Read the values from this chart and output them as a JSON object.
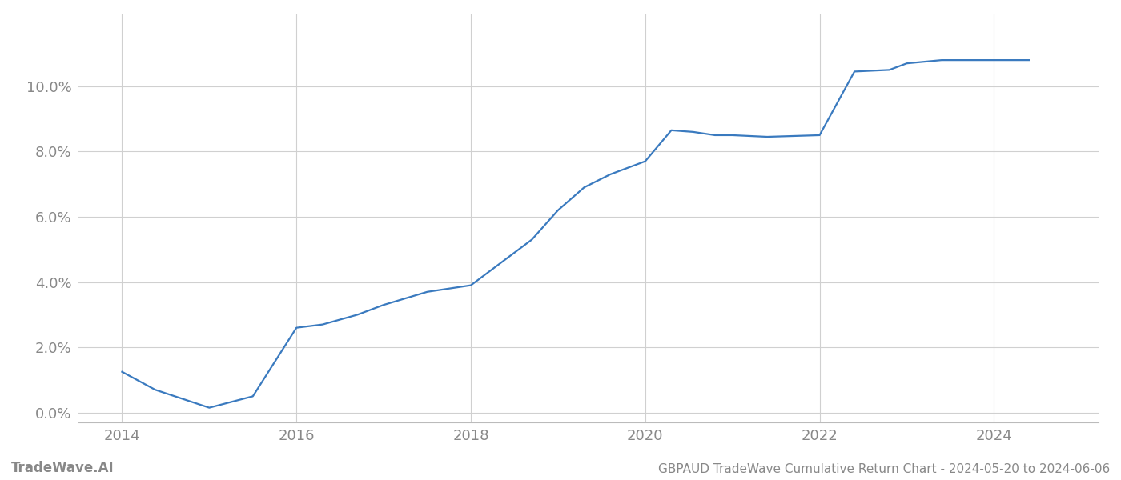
{
  "x_values": [
    2014.0,
    2014.38,
    2015.0,
    2015.5,
    2016.0,
    2016.3,
    2016.7,
    2017.0,
    2017.5,
    2018.0,
    2018.3,
    2018.7,
    2019.0,
    2019.3,
    2019.6,
    2020.0,
    2020.3,
    2020.55,
    2020.8,
    2021.0,
    2021.4,
    2022.0,
    2022.4,
    2022.8,
    2023.0,
    2023.4,
    2024.0,
    2024.4
  ],
  "y_values": [
    1.25,
    0.7,
    0.15,
    0.5,
    2.6,
    2.7,
    3.0,
    3.3,
    3.7,
    3.9,
    4.5,
    5.3,
    6.2,
    6.9,
    7.3,
    7.7,
    8.65,
    8.6,
    8.5,
    8.5,
    8.45,
    8.5,
    10.45,
    10.5,
    10.7,
    10.8,
    10.8,
    10.8
  ],
  "line_color": "#3a7abf",
  "line_width": 1.6,
  "background_color": "#ffffff",
  "grid_color": "#d0d0d0",
  "title": "GBPAUD TradeWave Cumulative Return Chart - 2024-05-20 to 2024-06-06",
  "watermark": "TradeWave.AI",
  "yticks": [
    0.0,
    2.0,
    4.0,
    6.0,
    8.0,
    10.0
  ],
  "ylim": [
    -0.3,
    12.2
  ],
  "xlim": [
    2013.5,
    2025.2
  ],
  "xticks": [
    2014,
    2016,
    2018,
    2020,
    2022,
    2024
  ],
  "tick_color": "#888888",
  "tick_fontsize": 13,
  "footer_fontsize": 11,
  "watermark_fontsize": 12
}
